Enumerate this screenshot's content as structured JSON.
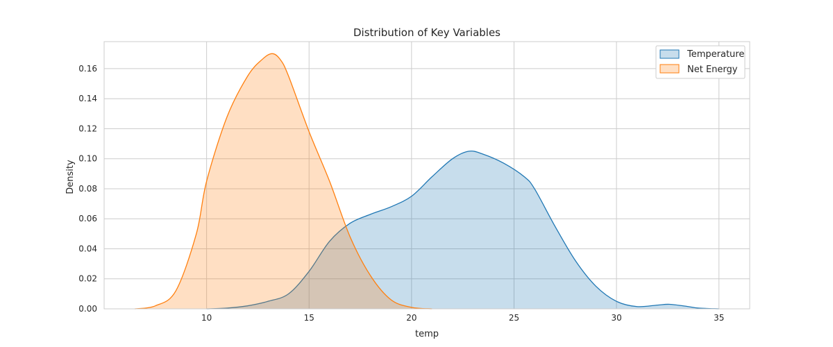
{
  "chart_data": {
    "type": "area",
    "title": "Distribution of Key Variables",
    "xlabel": "temp",
    "ylabel": "Density",
    "xlim": [
      5.0,
      36.5
    ],
    "ylim": [
      0,
      0.178
    ],
    "xticks": [
      10,
      15,
      20,
      25,
      30,
      35
    ],
    "yticks": [
      0.0,
      0.02,
      0.04,
      0.06,
      0.08,
      0.1,
      0.12,
      0.14,
      0.16
    ],
    "grid": true,
    "legend_position": "top-right",
    "series": [
      {
        "name": "Temperature",
        "line_color": "#1f77b4",
        "fill_color": "#1f77b4",
        "fill_opacity": 0.25,
        "points": [
          [
            10,
            0
          ],
          [
            11,
            0.0005
          ],
          [
            12,
            0.002
          ],
          [
            13,
            0.005
          ],
          [
            14,
            0.01
          ],
          [
            15,
            0.025
          ],
          [
            16,
            0.045
          ],
          [
            17,
            0.057
          ],
          [
            18,
            0.063
          ],
          [
            19,
            0.068
          ],
          [
            20,
            0.075
          ],
          [
            21,
            0.088
          ],
          [
            22,
            0.1
          ],
          [
            22.8,
            0.105
          ],
          [
            23.5,
            0.103
          ],
          [
            24.5,
            0.097
          ],
          [
            25.5,
            0.088
          ],
          [
            26,
            0.08
          ],
          [
            27,
            0.055
          ],
          [
            28,
            0.032
          ],
          [
            29,
            0.015
          ],
          [
            30,
            0.005
          ],
          [
            31,
            0.0015
          ],
          [
            32,
            0.0025
          ],
          [
            32.6,
            0.003
          ],
          [
            33.5,
            0.0015
          ],
          [
            34,
            0.0005
          ],
          [
            35,
            0
          ]
        ]
      },
      {
        "name": "Net Energy",
        "line_color": "#ff7f0e",
        "fill_color": "#ff7f0e",
        "fill_opacity": 0.25,
        "points": [
          [
            6.5,
            0
          ],
          [
            7.5,
            0.002
          ],
          [
            8.5,
            0.012
          ],
          [
            9.5,
            0.05
          ],
          [
            10,
            0.085
          ],
          [
            11,
            0.128
          ],
          [
            12,
            0.155
          ],
          [
            12.7,
            0.166
          ],
          [
            13.2,
            0.17
          ],
          [
            13.6,
            0.166
          ],
          [
            14,
            0.155
          ],
          [
            15,
            0.118
          ],
          [
            16,
            0.085
          ],
          [
            17,
            0.048
          ],
          [
            18,
            0.022
          ],
          [
            19,
            0.006
          ],
          [
            20,
            0.001
          ],
          [
            21,
            0
          ]
        ]
      }
    ]
  }
}
